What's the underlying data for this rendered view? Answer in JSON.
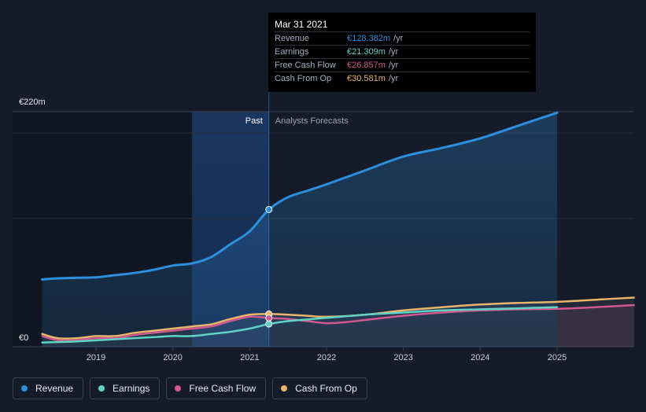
{
  "tooltip": {
    "date": "Mar 31 2021",
    "rows": [
      {
        "label": "Revenue",
        "value": "€128.382m",
        "unit": "/yr",
        "color": "#2e8ede"
      },
      {
        "label": "Earnings",
        "value": "€21.309m",
        "unit": "/yr",
        "color": "#5ed3c6"
      },
      {
        "label": "Free Cash Flow",
        "value": "€26.857m",
        "unit": "/yr",
        "color": "#d05890"
      },
      {
        "label": "Cash From Op",
        "value": "€30.581m",
        "unit": "/yr",
        "color": "#e8b56a"
      }
    ]
  },
  "legend": [
    {
      "label": "Revenue",
      "color": "#2e8ede"
    },
    {
      "label": "Earnings",
      "color": "#5ed3c6"
    },
    {
      "label": "Free Cash Flow",
      "color": "#d05890"
    },
    {
      "label": "Cash From Op",
      "color": "#e8b56a"
    }
  ],
  "chart_data": {
    "type": "line",
    "y_axis_labels": [
      "€220m",
      "€0"
    ],
    "ylim": [
      0,
      220
    ],
    "xlim": [
      2018.25,
      2026.0
    ],
    "x_ticks": [
      2019,
      2020,
      2021,
      2022,
      2023,
      2024,
      2025
    ],
    "x_tick_labels": [
      "2019",
      "2020",
      "2021",
      "2022",
      "2023",
      "2024",
      "2025"
    ],
    "past_label": "Past",
    "forecast_label": "Analysts Forecasts",
    "past_end": 2021.25,
    "highlight_start": 2020.25,
    "series": [
      {
        "name": "Revenue",
        "color": "#2e8ede",
        "fill": true,
        "x": [
          2018.3,
          2018.5,
          2018.75,
          2019.0,
          2019.25,
          2019.5,
          2019.75,
          2020.0,
          2020.25,
          2020.5,
          2020.75,
          2021.0,
          2021.25,
          2021.5,
          2021.75,
          2022.0,
          2022.5,
          2023.0,
          2023.5,
          2024.0,
          2024.5,
          2025.0
        ],
        "y": [
          63,
          64,
          64.5,
          65,
          67,
          69,
          72,
          76,
          78,
          84,
          96,
          108,
          128.4,
          140,
          146,
          152,
          165,
          178,
          186,
          195,
          207,
          219
        ]
      },
      {
        "name": "Earnings",
        "color": "#5ed3c6",
        "fill": false,
        "x": [
          2018.3,
          2018.75,
          2019.25,
          2019.75,
          2020.0,
          2020.25,
          2020.5,
          2020.75,
          2021.0,
          2021.25,
          2021.5,
          2022.0,
          2022.5,
          2023.0,
          2023.5,
          2024.0,
          2024.5,
          2025.0
        ],
        "y": [
          4,
          5,
          7,
          9,
          10,
          10,
          12,
          14,
          17,
          21.3,
          24,
          27,
          30,
          32,
          34,
          35,
          36,
          37
        ]
      },
      {
        "name": "Free Cash Flow",
        "color": "#d05890",
        "fill": false,
        "x": [
          2018.3,
          2018.5,
          2018.75,
          2019.0,
          2019.25,
          2019.5,
          2019.75,
          2020.0,
          2020.25,
          2020.5,
          2020.75,
          2021.0,
          2021.25,
          2021.5,
          2021.75,
          2022.0,
          2022.25,
          2022.5,
          2023.0,
          2023.5,
          2024.0,
          2024.5,
          2025.0,
          2025.5,
          2026.0
        ],
        "y": [
          10,
          6,
          6,
          8,
          8,
          11,
          13,
          15,
          17,
          19,
          24,
          28,
          26.9,
          26,
          24,
          22,
          23,
          25,
          29,
          32,
          34,
          35,
          35.5,
          37,
          39
        ]
      },
      {
        "name": "Cash From Op",
        "color": "#e8b56a",
        "fill": false,
        "x": [
          2018.3,
          2018.5,
          2018.75,
          2019.0,
          2019.25,
          2019.5,
          2019.75,
          2020.0,
          2020.25,
          2020.5,
          2020.75,
          2021.0,
          2021.25,
          2021.5,
          2021.75,
          2022.0,
          2022.5,
          2023.0,
          2023.5,
          2024.0,
          2024.5,
          2025.0,
          2025.5,
          2026.0
        ],
        "y": [
          12,
          8,
          8,
          10,
          10,
          13,
          15,
          17,
          19,
          21,
          26,
          30,
          30.6,
          30,
          29,
          28,
          30,
          34,
          37,
          39.5,
          41,
          42,
          44,
          46
        ]
      }
    ]
  }
}
